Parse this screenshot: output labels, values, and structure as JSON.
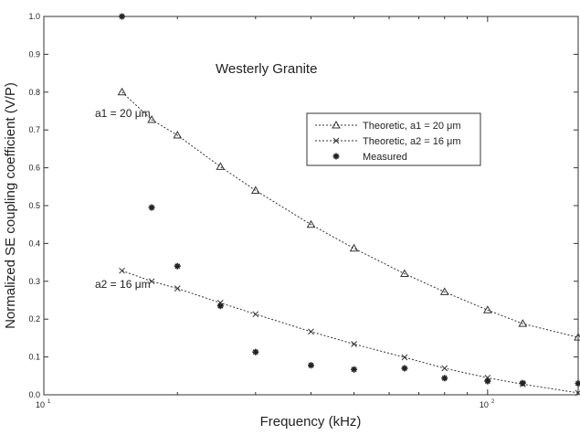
{
  "chart_data": {
    "type": "scatter",
    "title": "Westerly Granite",
    "xlabel": "Frequency (kHz)",
    "ylabel": "Normalized SE coupling coefficient (V/P)",
    "x_scale": "log",
    "xlim": [
      10,
      160
    ],
    "ylim": [
      0,
      1
    ],
    "grid": false,
    "legend_position": "top-right",
    "x_tick_labels": [
      {
        "value": 10,
        "base": "10",
        "exp": "1"
      },
      {
        "value": 100,
        "base": "10",
        "exp": "2"
      }
    ],
    "y_tick_labels": [
      {
        "value": 0.0,
        "label": "0.0"
      },
      {
        "value": 0.1,
        "label": "0.1"
      },
      {
        "value": 0.2,
        "label": "0.2"
      },
      {
        "value": 0.3,
        "label": "0.3"
      },
      {
        "value": 0.4,
        "label": "0.4"
      },
      {
        "value": 0.5,
        "label": "0.5"
      },
      {
        "value": 0.6,
        "label": "0.6"
      },
      {
        "value": 0.7,
        "label": "0.7"
      },
      {
        "value": 0.8,
        "label": "0.8"
      },
      {
        "value": 0.9,
        "label": "0.9"
      },
      {
        "value": 1.0,
        "label": "1.0"
      }
    ],
    "series": [
      {
        "name": "Theoretic, a1 = 20 μm",
        "style": "dotted-line-triangle",
        "color": "#333333",
        "x": [
          15,
          17.5,
          20,
          25,
          30,
          40,
          50,
          65,
          80,
          100,
          120,
          160
        ],
        "y": [
          0.8,
          0.727,
          0.686,
          0.603,
          0.54,
          0.45,
          0.387,
          0.32,
          0.272,
          0.224,
          0.188,
          0.152
        ]
      },
      {
        "name": "Theoretic, a2 = 16 μm",
        "style": "dotted-line-x",
        "color": "#333333",
        "x": [
          15,
          17.5,
          20,
          25,
          30,
          40,
          50,
          65,
          80,
          100,
          120,
          160
        ],
        "y": [
          0.328,
          0.3,
          0.281,
          0.243,
          0.213,
          0.167,
          0.134,
          0.099,
          0.07,
          0.045,
          0.028,
          0.005
        ]
      },
      {
        "name": "Measured",
        "style": "asterisk",
        "color": "#222222",
        "x": [
          15,
          17.5,
          20,
          25,
          30,
          40,
          50,
          65,
          80,
          100,
          120,
          160
        ],
        "y": [
          1.0,
          0.495,
          0.34,
          0.235,
          0.113,
          0.078,
          0.067,
          0.07,
          0.044,
          0.036,
          0.031,
          0.03
        ]
      }
    ],
    "annotations": [
      {
        "text": "a1 = 20 μm",
        "x": 13.6,
        "y": 0.735
      },
      {
        "text": "a2 = 16 μm",
        "x": 13.6,
        "y": 0.285
      }
    ]
  }
}
